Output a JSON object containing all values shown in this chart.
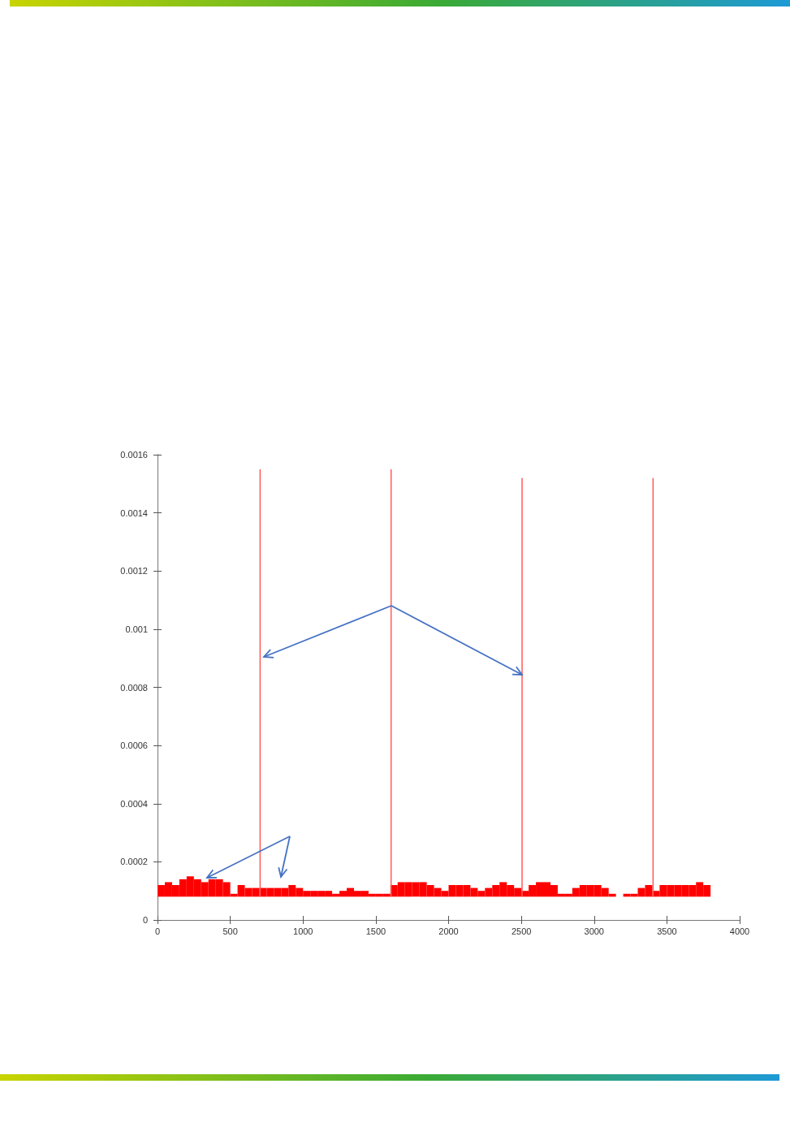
{
  "chart_data": {
    "type": "bar",
    "xlim": [
      0,
      4000
    ],
    "xticks": [
      0,
      500,
      1000,
      1500,
      2000,
      2500,
      3000,
      3500,
      4000
    ],
    "ylim": [
      0,
      0.0016
    ],
    "yticks": [
      0,
      0.0002,
      0.0004,
      0.0006,
      0.0008,
      0.001,
      0.0012,
      0.0014,
      0.0016
    ],
    "grid": false,
    "series": [
      {
        "color": "#ff0000",
        "x": [
          25,
          75,
          125,
          175,
          225,
          275,
          325,
          375,
          425,
          475,
          525,
          575,
          625,
          675,
          725,
          775,
          825,
          875,
          925,
          975,
          1025,
          1075,
          1125,
          1175,
          1225,
          1275,
          1325,
          1375,
          1425,
          1475,
          1525,
          1575,
          1625,
          1675,
          1725,
          1775,
          1825,
          1875,
          1925,
          1975,
          2025,
          2075,
          2125,
          2175,
          2225,
          2275,
          2325,
          2375,
          2425,
          2475,
          2525,
          2575,
          2625,
          2675,
          2725,
          2775,
          2825,
          2875,
          2925,
          2975,
          3025,
          3075,
          3125,
          3175,
          3225,
          3275,
          3325,
          3375,
          3425,
          3475,
          3525,
          3575,
          3625,
          3675,
          3725,
          3775
        ],
        "values": [
          4e-05,
          5e-05,
          4e-05,
          6e-05,
          7e-05,
          6e-05,
          5e-05,
          6e-05,
          6e-05,
          5e-05,
          1e-05,
          4e-05,
          3e-05,
          3e-05,
          3e-05,
          3e-05,
          3e-05,
          3e-05,
          4e-05,
          3e-05,
          2e-05,
          2e-05,
          2e-05,
          2e-05,
          1e-05,
          2e-05,
          3e-05,
          2e-05,
          2e-05,
          1e-05,
          1e-05,
          1e-05,
          4e-05,
          5e-05,
          5e-05,
          5e-05,
          5e-05,
          4e-05,
          3e-05,
          2e-05,
          4e-05,
          4e-05,
          4e-05,
          3e-05,
          2e-05,
          3e-05,
          4e-05,
          5e-05,
          4e-05,
          3e-05,
          2e-05,
          4e-05,
          5e-05,
          5e-05,
          4e-05,
          1e-05,
          1e-05,
          3e-05,
          4e-05,
          4e-05,
          4e-05,
          3e-05,
          1e-05,
          null,
          1e-05,
          1e-05,
          3e-05,
          4e-05,
          2e-05,
          4e-05,
          4e-05,
          4e-05,
          4e-05,
          4e-05,
          5e-05,
          4e-05
        ],
        "base": [
          8e-05,
          8e-05,
          8e-05,
          8e-05,
          8e-05,
          8e-05,
          8e-05,
          8e-05,
          8e-05,
          8e-05,
          8e-05,
          8e-05,
          8e-05,
          8e-05,
          8e-05,
          8e-05,
          8e-05,
          8e-05,
          8e-05,
          8e-05,
          8e-05,
          8e-05,
          8e-05,
          8e-05,
          8e-05,
          8e-05,
          8e-05,
          8e-05,
          8e-05,
          8e-05,
          8e-05,
          8e-05,
          8e-05,
          8e-05,
          8e-05,
          8e-05,
          8e-05,
          8e-05,
          8e-05,
          8e-05,
          8e-05,
          8e-05,
          8e-05,
          8e-05,
          8e-05,
          8e-05,
          8e-05,
          8e-05,
          8e-05,
          8e-05,
          8e-05,
          8e-05,
          8e-05,
          8e-05,
          8e-05,
          8e-05,
          8e-05,
          8e-05,
          8e-05,
          8e-05,
          8e-05,
          8e-05,
          8e-05,
          null,
          8e-05,
          8e-05,
          8e-05,
          8e-05,
          8e-05,
          8e-05,
          8e-05,
          8e-05,
          8e-05,
          8e-05,
          8e-05,
          8e-05
        ]
      },
      {
        "color": "#ff5a5a",
        "x": [
          705,
          1605,
          2505,
          3405
        ],
        "values": [
          0.00147,
          0.00147,
          0.00144,
          0.00144
        ],
        "base": [
          8e-05,
          8e-05,
          8e-05,
          8e-05
        ]
      }
    ]
  }
}
